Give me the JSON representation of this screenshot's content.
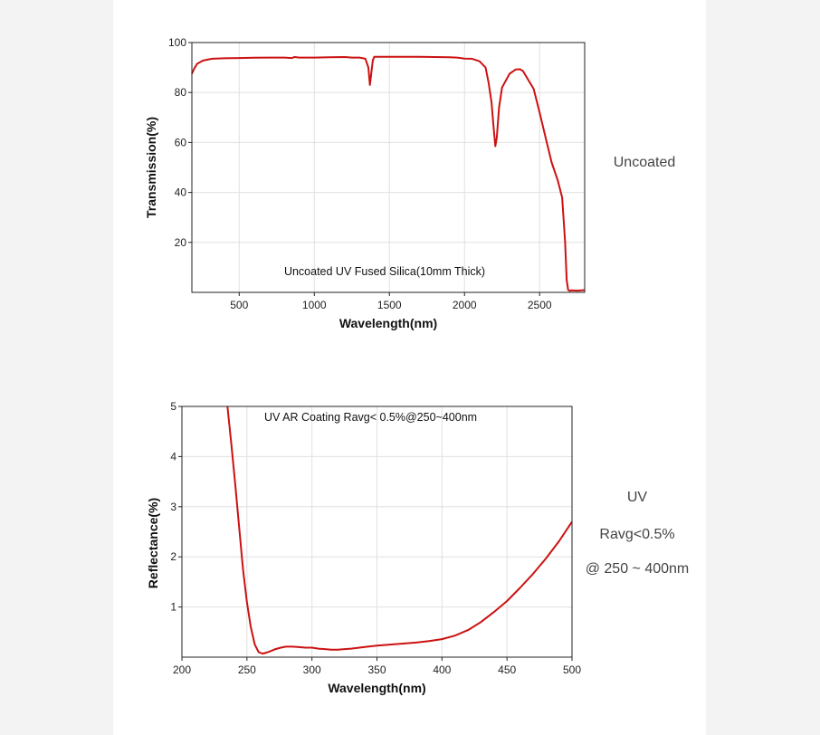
{
  "chart_data": [
    {
      "type": "line",
      "annotation": "Uncoated UV Fused Silica(10mm Thick)",
      "xlabel": "Wavelength(nm)",
      "ylabel": "Transmission(%)",
      "xlim": [
        185,
        2800
      ],
      "ylim": [
        0,
        100
      ],
      "xticks": [
        500,
        1000,
        1500,
        2000,
        2500
      ],
      "yticks": [
        20,
        40,
        60,
        80,
        100
      ],
      "grid": true,
      "side_label": [
        "Uncoated"
      ],
      "series": [
        {
          "color": "#cc1111",
          "x": [
            185,
            200,
            220,
            260,
            320,
            400,
            500,
            600,
            700,
            800,
            850,
            870,
            900,
            1000,
            1100,
            1200,
            1250,
            1300,
            1340,
            1360,
            1370,
            1380,
            1390,
            1400,
            1450,
            1500,
            1600,
            1700,
            1800,
            1900,
            1950,
            2000,
            2050,
            2100,
            2140,
            2160,
            2180,
            2195,
            2205,
            2215,
            2230,
            2250,
            2300,
            2340,
            2370,
            2390,
            2420,
            2460,
            2500,
            2540,
            2580,
            2620,
            2650,
            2670,
            2680,
            2690,
            2700,
            2710,
            2750,
            2800
          ],
          "y": [
            87.5,
            89.5,
            91.5,
            92.8,
            93.5,
            93.7,
            93.8,
            93.9,
            94,
            94,
            93.8,
            94.2,
            94,
            94,
            94.1,
            94.2,
            94,
            94,
            93.5,
            90,
            83,
            88,
            93,
            94.3,
            94.3,
            94.3,
            94.3,
            94.3,
            94.2,
            94.1,
            94,
            93.6,
            93.5,
            92.5,
            90,
            84,
            76,
            65,
            58.5,
            62,
            74,
            82,
            87.5,
            89.2,
            89.3,
            88.5,
            85.5,
            81.5,
            72,
            62,
            52,
            45,
            38,
            20,
            5,
            1,
            0.6,
            0.8,
            0.7,
            0.9
          ]
        }
      ]
    },
    {
      "type": "line",
      "annotation": "UV AR Coating Ravg< 0.5%@250~400nm",
      "xlabel": "Wavelength(nm)",
      "ylabel": "Reflectance(%)",
      "xlim": [
        200,
        500
      ],
      "ylim": [
        0,
        5
      ],
      "xticks": [
        200,
        250,
        300,
        350,
        400,
        450,
        500
      ],
      "yticks": [
        1,
        2,
        3,
        4,
        5
      ],
      "grid": true,
      "side_label": [
        "UV",
        "Ravg<0.5%",
        "@ 250 ~ 400nm"
      ],
      "series": [
        {
          "color": "#cc1111",
          "x": [
            235,
            238,
            241,
            244,
            247,
            250,
            253,
            256,
            259,
            262,
            265,
            268,
            272,
            276,
            280,
            285,
            290,
            295,
            300,
            305,
            310,
            315,
            320,
            325,
            330,
            340,
            350,
            360,
            370,
            380,
            390,
            400,
            410,
            420,
            430,
            440,
            450,
            460,
            470,
            480,
            490,
            500
          ],
          "y": [
            5.0,
            4.25,
            3.45,
            2.6,
            1.75,
            1.1,
            0.6,
            0.25,
            0.1,
            0.07,
            0.09,
            0.12,
            0.16,
            0.19,
            0.21,
            0.21,
            0.2,
            0.19,
            0.19,
            0.17,
            0.16,
            0.15,
            0.15,
            0.16,
            0.17,
            0.2,
            0.23,
            0.25,
            0.27,
            0.29,
            0.32,
            0.36,
            0.43,
            0.54,
            0.7,
            0.9,
            1.12,
            1.38,
            1.66,
            1.97,
            2.31,
            2.7
          ]
        }
      ]
    }
  ]
}
